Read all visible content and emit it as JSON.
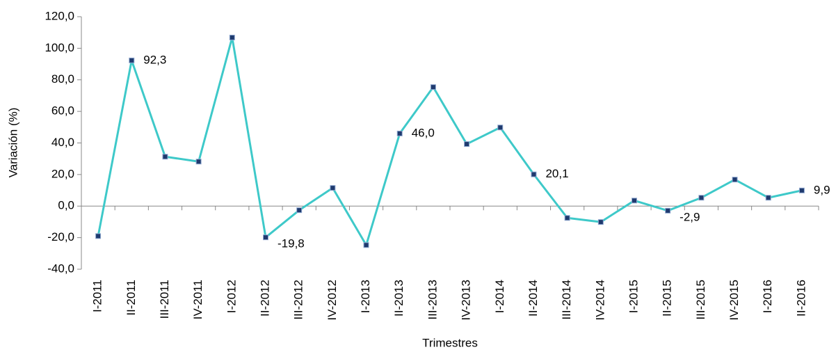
{
  "chart_data": {
    "type": "line",
    "y_label": "Variación (%)",
    "x_label": "Trimestres",
    "categories": [
      "I-2011",
      "II-2011",
      "III-2011",
      "IV-2011",
      "I-2012",
      "II-2012",
      "III-2012",
      "IV-2012",
      "I-2013",
      "II-2013",
      "III-2013",
      "IV-2013",
      "I-2014",
      "II-2014",
      "III-2014",
      "IV-2014",
      "I-2015",
      "II-2015",
      "III-2015",
      "IV-2015",
      "I-2016",
      "II-2016"
    ],
    "series": [
      {
        "color": "#3ec9c9",
        "marker_color": "#1f3a6e",
        "values": [
          -19,
          92.3,
          31.3,
          28.2,
          106.8,
          -19.8,
          -2.6,
          11.5,
          -24.7,
          46.0,
          75.4,
          39.3,
          49.8,
          20.1,
          -7.5,
          -10.1,
          3.5,
          -2.9,
          5.3,
          16.8,
          5.3,
          9.9
        ],
        "value_labels": [
          null,
          "92,3",
          null,
          null,
          null,
          "-19,8",
          null,
          null,
          null,
          "46,0",
          null,
          null,
          null,
          "20,1",
          null,
          null,
          null,
          "-2,9",
          null,
          null,
          null,
          "9,9"
        ]
      }
    ],
    "ylim": [
      -40,
      120
    ],
    "yticks": [
      {
        "value": -40,
        "label": "-40,0"
      },
      {
        "value": -20,
        "label": "-20,0"
      },
      {
        "value": 0,
        "label": "0,0"
      },
      {
        "value": 20,
        "label": "20,0"
      },
      {
        "value": 40,
        "label": "40,0"
      },
      {
        "value": 60,
        "label": "60,0"
      },
      {
        "value": 80,
        "label": "80,0"
      },
      {
        "value": 100,
        "label": "100,0"
      },
      {
        "value": 120,
        "label": "120,0"
      }
    ]
  }
}
